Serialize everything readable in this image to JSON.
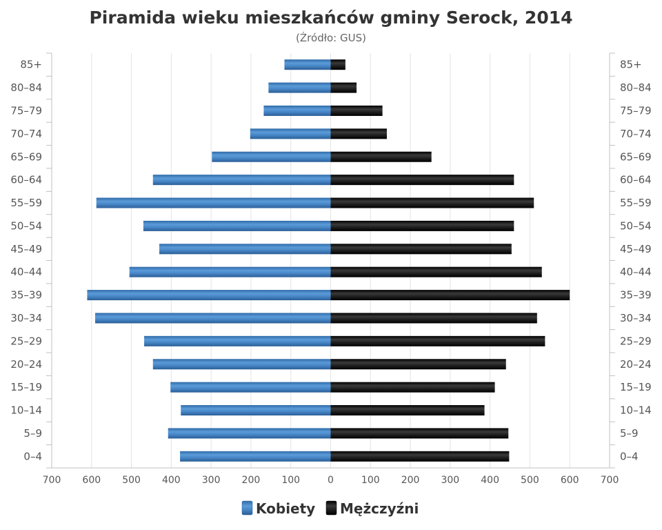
{
  "chart_data": {
    "type": "bar",
    "orientation": "horizontal",
    "layout": "population-pyramid",
    "title": "Piramida wieku mieszkańców gminy Serock, 2014",
    "subtitle": "(Źródło: GUS)",
    "categories": [
      "0–4",
      "5–9",
      "10–14",
      "15–19",
      "20–24",
      "25–29",
      "30–34",
      "35–39",
      "40–44",
      "45–49",
      "50–54",
      "55–59",
      "60–64",
      "65–69",
      "70–74",
      "75–79",
      "80–84",
      "85+"
    ],
    "series": [
      {
        "name": "Kobiety",
        "side": "left",
        "color": "#3d7ebf",
        "values": [
          378,
          408,
          376,
          402,
          446,
          468,
          591,
          611,
          505,
          430,
          470,
          588,
          446,
          298,
          202,
          168,
          156,
          116
        ]
      },
      {
        "name": "Mężczyźni",
        "side": "right",
        "color": "#1a1a1a",
        "values": [
          448,
          446,
          386,
          412,
          440,
          538,
          518,
          600,
          530,
          454,
          460,
          510,
          460,
          253,
          141,
          130,
          65,
          37
        ]
      }
    ],
    "xlim": [
      -700,
      700
    ],
    "x_ticks": [
      "700",
      "600",
      "500",
      "400",
      "300",
      "200",
      "100",
      "0",
      "100",
      "200",
      "300",
      "400",
      "500",
      "600",
      "700"
    ],
    "grid": true,
    "legend_position": "bottom"
  }
}
